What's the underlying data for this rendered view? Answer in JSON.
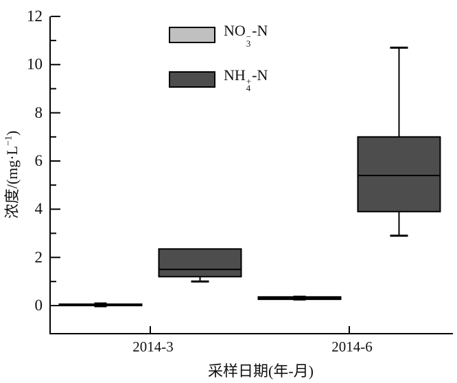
{
  "chart_data": {
    "type": "boxplot",
    "title": "",
    "xlabel": "采样日期(年-月)",
    "ylabel": "浓度/(mg·L−1)",
    "ylabel_parts": {
      "pre": "浓度/(mg·L",
      "sup": "−1",
      "post": ")"
    },
    "categories": [
      "2014-3",
      "2014-6"
    ],
    "ylim": [
      -1.2,
      12
    ],
    "yticks_major": [
      0,
      2,
      4,
      6,
      8,
      10,
      12
    ],
    "yticks_minor": [
      1,
      3,
      5,
      7,
      9,
      11
    ],
    "grid": "off",
    "legend_position": "top-center-inside",
    "legend": [
      {
        "label": "NO₃⁻-N",
        "parts": {
          "pre": "NO",
          "sub": "3",
          "sup": "−",
          "post": "-N"
        },
        "fill": "#c0c0c0"
      },
      {
        "label": "NH₄⁺-N",
        "parts": {
          "pre": "NH",
          "sub": "4",
          "sup": "+",
          "post": "-N"
        },
        "fill": "#4d4d4d"
      }
    ],
    "series": [
      {
        "name": "NO₃⁻-N",
        "fill": "#c0c0c0",
        "boxes": [
          {
            "category": "2014-3",
            "min": 0.0,
            "q1": 0.0,
            "median": 0.03,
            "q3": 0.06,
            "max": 0.06,
            "mean": 0.03
          },
          {
            "category": "2014-6",
            "min": 0.26,
            "q1": 0.26,
            "median": 0.31,
            "q3": 0.36,
            "max": 0.36,
            "mean": 0.31
          }
        ]
      },
      {
        "name": "NH₄⁺-N",
        "fill": "#4d4d4d",
        "boxes": [
          {
            "category": "2014-3",
            "min": 1.0,
            "q1": 1.2,
            "median": 1.5,
            "q3": 2.35,
            "max": 2.35
          },
          {
            "category": "2014-6",
            "min": 2.9,
            "q1": 3.9,
            "median": 5.4,
            "q3": 7.0,
            "max": 10.7
          }
        ]
      }
    ],
    "colors": {
      "axis": "#000000",
      "box_border": "#000000",
      "mean_marker": "#000000"
    }
  }
}
